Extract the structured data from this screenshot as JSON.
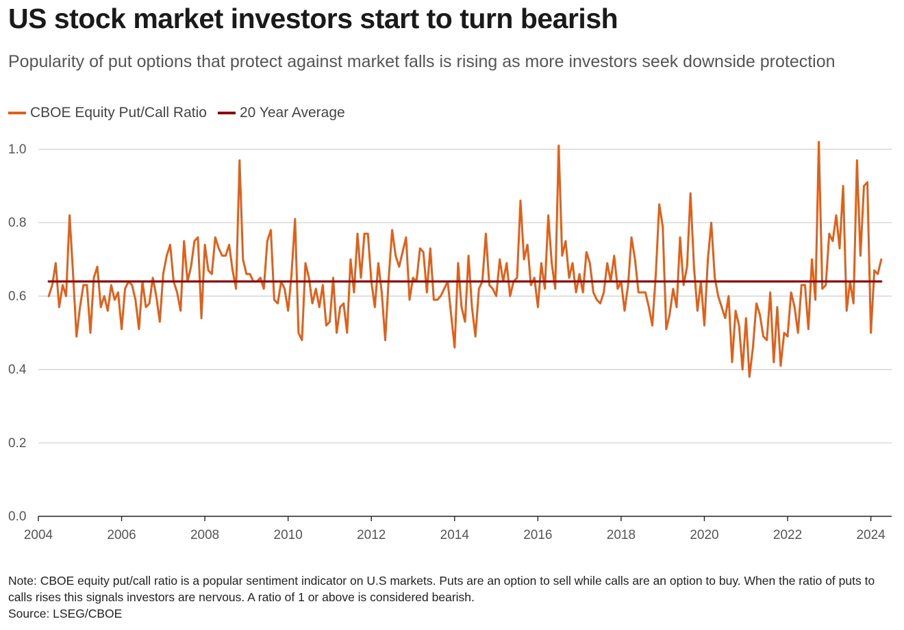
{
  "header": {
    "title": "US stock market investors start to turn bearish",
    "subtitle": "Popularity of put options that protect against market falls is rising as more investors seek downside protection"
  },
  "legend": [
    {
      "label": "CBOE Equity Put/Call Ratio",
      "color": "#e0601a"
    },
    {
      "label": "20 Year Average",
      "color": "#8b0d0d"
    }
  ],
  "footer": {
    "note": "Note: CBOE equity put/call ratio is a popular sentiment indicator on U.S markets. Puts are an option to sell while calls are an option to buy. When the ratio of puts to calls rises this signals investors are nervous. A ratio of 1 or above is considered bearish.",
    "source": "Source: LSEG/CBOE"
  },
  "chart_data": {
    "type": "line",
    "title": "US stock market investors start to turn bearish",
    "xlabel": "",
    "ylabel": "",
    "xlim": [
      "2004-01",
      "2024-07"
    ],
    "ylim": [
      0,
      1.0
    ],
    "x_ticks": [
      "2004",
      "2006",
      "2008",
      "2010",
      "2012",
      "2014",
      "2016",
      "2018",
      "2020",
      "2022",
      "2024"
    ],
    "y_ticks": [
      "0.0",
      "0.2",
      "0.4",
      "0.6",
      "0.8",
      "1.0"
    ],
    "grid": "horizontal",
    "legend_position": "top-left",
    "series": [
      {
        "name": "CBOE Equity Put/Call Ratio",
        "color": "#e0601a",
        "points": [
          [
            "2004-04",
            0.6
          ],
          [
            "2004-05",
            0.63
          ],
          [
            "2004-06",
            0.69
          ],
          [
            "2004-07",
            0.57
          ],
          [
            "2004-08",
            0.63
          ],
          [
            "2004-09",
            0.6
          ],
          [
            "2004-10",
            0.82
          ],
          [
            "2004-11",
            0.66
          ],
          [
            "2004-12",
            0.49
          ],
          [
            "2005-01",
            0.57
          ],
          [
            "2005-02",
            0.63
          ],
          [
            "2005-03",
            0.63
          ],
          [
            "2005-04",
            0.5
          ],
          [
            "2005-05",
            0.65
          ],
          [
            "2005-06",
            0.68
          ],
          [
            "2005-07",
            0.57
          ],
          [
            "2005-08",
            0.6
          ],
          [
            "2005-09",
            0.56
          ],
          [
            "2005-10",
            0.63
          ],
          [
            "2005-11",
            0.59
          ],
          [
            "2005-12",
            0.61
          ],
          [
            "2006-01",
            0.51
          ],
          [
            "2006-02",
            0.62
          ],
          [
            "2006-03",
            0.64
          ],
          [
            "2006-04",
            0.63
          ],
          [
            "2006-05",
            0.59
          ],
          [
            "2006-06",
            0.51
          ],
          [
            "2006-07",
            0.64
          ],
          [
            "2006-08",
            0.57
          ],
          [
            "2006-09",
            0.58
          ],
          [
            "2006-10",
            0.65
          ],
          [
            "2006-11",
            0.6
          ],
          [
            "2006-12",
            0.53
          ],
          [
            "2007-01",
            0.66
          ],
          [
            "2007-02",
            0.71
          ],
          [
            "2007-03",
            0.74
          ],
          [
            "2007-04",
            0.64
          ],
          [
            "2007-05",
            0.61
          ],
          [
            "2007-06",
            0.56
          ],
          [
            "2007-07",
            0.75
          ],
          [
            "2007-08",
            0.64
          ],
          [
            "2007-09",
            0.68
          ],
          [
            "2007-10",
            0.75
          ],
          [
            "2007-11",
            0.76
          ],
          [
            "2007-12",
            0.54
          ],
          [
            "2008-01",
            0.74
          ],
          [
            "2008-02",
            0.67
          ],
          [
            "2008-03",
            0.66
          ],
          [
            "2008-04",
            0.76
          ],
          [
            "2008-05",
            0.73
          ],
          [
            "2008-06",
            0.71
          ],
          [
            "2008-07",
            0.71
          ],
          [
            "2008-08",
            0.74
          ],
          [
            "2008-09",
            0.67
          ],
          [
            "2008-10",
            0.62
          ],
          [
            "2008-11",
            0.97
          ],
          [
            "2008-12",
            0.7
          ],
          [
            "2009-01",
            0.66
          ],
          [
            "2009-02",
            0.66
          ],
          [
            "2009-03",
            0.64
          ],
          [
            "2009-04",
            0.64
          ],
          [
            "2009-05",
            0.65
          ],
          [
            "2009-06",
            0.62
          ],
          [
            "2009-07",
            0.75
          ],
          [
            "2009-08",
            0.78
          ],
          [
            "2009-09",
            0.59
          ],
          [
            "2009-10",
            0.58
          ],
          [
            "2009-11",
            0.64
          ],
          [
            "2009-12",
            0.62
          ],
          [
            "2010-01",
            0.56
          ],
          [
            "2010-02",
            0.66
          ],
          [
            "2010-03",
            0.81
          ],
          [
            "2010-04",
            0.5
          ],
          [
            "2010-05",
            0.48
          ],
          [
            "2010-06",
            0.69
          ],
          [
            "2010-07",
            0.65
          ],
          [
            "2010-08",
            0.58
          ],
          [
            "2010-09",
            0.62
          ],
          [
            "2010-10",
            0.57
          ],
          [
            "2010-11",
            0.63
          ],
          [
            "2010-12",
            0.52
          ],
          [
            "2011-01",
            0.53
          ],
          [
            "2011-02",
            0.65
          ],
          [
            "2011-03",
            0.5
          ],
          [
            "2011-04",
            0.57
          ],
          [
            "2011-05",
            0.58
          ],
          [
            "2011-06",
            0.5
          ],
          [
            "2011-07",
            0.7
          ],
          [
            "2011-08",
            0.61
          ],
          [
            "2011-09",
            0.77
          ],
          [
            "2011-10",
            0.65
          ],
          [
            "2011-11",
            0.77
          ],
          [
            "2011-12",
            0.77
          ],
          [
            "2012-01",
            0.64
          ],
          [
            "2012-02",
            0.57
          ],
          [
            "2012-03",
            0.69
          ],
          [
            "2012-04",
            0.61
          ],
          [
            "2012-05",
            0.48
          ],
          [
            "2012-06",
            0.65
          ],
          [
            "2012-07",
            0.78
          ],
          [
            "2012-08",
            0.71
          ],
          [
            "2012-09",
            0.68
          ],
          [
            "2012-10",
            0.72
          ],
          [
            "2012-11",
            0.76
          ],
          [
            "2012-12",
            0.59
          ],
          [
            "2013-01",
            0.65
          ],
          [
            "2013-02",
            0.64
          ],
          [
            "2013-03",
            0.73
          ],
          [
            "2013-04",
            0.72
          ],
          [
            "2013-05",
            0.61
          ],
          [
            "2013-06",
            0.73
          ],
          [
            "2013-07",
            0.59
          ],
          [
            "2013-08",
            0.59
          ],
          [
            "2013-09",
            0.6
          ],
          [
            "2013-10",
            0.62
          ],
          [
            "2013-11",
            0.64
          ],
          [
            "2013-12",
            0.55
          ],
          [
            "2014-01",
            0.46
          ],
          [
            "2014-02",
            0.69
          ],
          [
            "2014-03",
            0.57
          ],
          [
            "2014-04",
            0.53
          ],
          [
            "2014-05",
            0.71
          ],
          [
            "2014-06",
            0.57
          ],
          [
            "2014-07",
            0.49
          ],
          [
            "2014-08",
            0.62
          ],
          [
            "2014-09",
            0.64
          ],
          [
            "2014-10",
            0.77
          ],
          [
            "2014-11",
            0.63
          ],
          [
            "2014-12",
            0.62
          ],
          [
            "2015-01",
            0.6
          ],
          [
            "2015-02",
            0.7
          ],
          [
            "2015-03",
            0.64
          ],
          [
            "2015-04",
            0.69
          ],
          [
            "2015-05",
            0.6
          ],
          [
            "2015-06",
            0.64
          ],
          [
            "2015-07",
            0.65
          ],
          [
            "2015-08",
            0.86
          ],
          [
            "2015-09",
            0.7
          ],
          [
            "2015-10",
            0.74
          ],
          [
            "2015-11",
            0.63
          ],
          [
            "2015-12",
            0.65
          ],
          [
            "2016-01",
            0.57
          ],
          [
            "2016-02",
            0.69
          ],
          [
            "2016-03",
            0.62
          ],
          [
            "2016-04",
            0.82
          ],
          [
            "2016-05",
            0.69
          ],
          [
            "2016-06",
            0.62
          ],
          [
            "2016-07",
            1.01
          ],
          [
            "2016-08",
            0.71
          ],
          [
            "2016-09",
            0.75
          ],
          [
            "2016-10",
            0.65
          ],
          [
            "2016-11",
            0.69
          ],
          [
            "2016-12",
            0.61
          ],
          [
            "2017-01",
            0.66
          ],
          [
            "2017-02",
            0.61
          ],
          [
            "2017-03",
            0.72
          ],
          [
            "2017-04",
            0.69
          ],
          [
            "2017-05",
            0.61
          ],
          [
            "2017-06",
            0.59
          ],
          [
            "2017-07",
            0.58
          ],
          [
            "2017-08",
            0.61
          ],
          [
            "2017-09",
            0.69
          ],
          [
            "2017-10",
            0.64
          ],
          [
            "2017-11",
            0.71
          ],
          [
            "2017-12",
            0.62
          ],
          [
            "2018-01",
            0.64
          ],
          [
            "2018-02",
            0.56
          ],
          [
            "2018-03",
            0.63
          ],
          [
            "2018-04",
            0.76
          ],
          [
            "2018-05",
            0.7
          ],
          [
            "2018-06",
            0.61
          ],
          [
            "2018-07",
            0.61
          ],
          [
            "2018-08",
            0.61
          ],
          [
            "2018-09",
            0.57
          ],
          [
            "2018-10",
            0.52
          ],
          [
            "2018-11",
            0.66
          ],
          [
            "2018-12",
            0.85
          ],
          [
            "2019-01",
            0.79
          ],
          [
            "2019-02",
            0.51
          ],
          [
            "2019-03",
            0.55
          ],
          [
            "2019-04",
            0.62
          ],
          [
            "2019-05",
            0.57
          ],
          [
            "2019-06",
            0.76
          ],
          [
            "2019-07",
            0.63
          ],
          [
            "2019-08",
            0.68
          ],
          [
            "2019-09",
            0.88
          ],
          [
            "2019-10",
            0.68
          ],
          [
            "2019-11",
            0.56
          ],
          [
            "2019-12",
            0.64
          ],
          [
            "2020-01",
            0.52
          ],
          [
            "2020-02",
            0.7
          ],
          [
            "2020-03",
            0.8
          ],
          [
            "2020-04",
            0.65
          ],
          [
            "2020-05",
            0.6
          ],
          [
            "2020-06",
            0.57
          ],
          [
            "2020-07",
            0.54
          ],
          [
            "2020-08",
            0.6
          ],
          [
            "2020-09",
            0.42
          ],
          [
            "2020-10",
            0.56
          ],
          [
            "2020-11",
            0.52
          ],
          [
            "2020-12",
            0.4
          ],
          [
            "2021-01",
            0.54
          ],
          [
            "2021-02",
            0.38
          ],
          [
            "2021-03",
            0.46
          ],
          [
            "2021-04",
            0.58
          ],
          [
            "2021-05",
            0.55
          ],
          [
            "2021-06",
            0.49
          ],
          [
            "2021-07",
            0.48
          ],
          [
            "2021-08",
            0.61
          ],
          [
            "2021-09",
            0.42
          ],
          [
            "2021-10",
            0.57
          ],
          [
            "2021-11",
            0.41
          ],
          [
            "2021-12",
            0.5
          ],
          [
            "2022-01",
            0.49
          ],
          [
            "2022-02",
            0.61
          ],
          [
            "2022-03",
            0.57
          ],
          [
            "2022-04",
            0.5
          ],
          [
            "2022-05",
            0.63
          ],
          [
            "2022-06",
            0.63
          ],
          [
            "2022-07",
            0.51
          ],
          [
            "2022-08",
            0.7
          ],
          [
            "2022-09",
            0.59
          ],
          [
            "2022-10",
            1.02
          ],
          [
            "2022-11",
            0.62
          ],
          [
            "2022-12",
            0.63
          ],
          [
            "2023-01",
            0.77
          ],
          [
            "2023-02",
            0.75
          ],
          [
            "2023-03",
            0.82
          ],
          [
            "2023-04",
            0.73
          ],
          [
            "2023-05",
            0.9
          ],
          [
            "2023-06",
            0.56
          ],
          [
            "2023-07",
            0.64
          ],
          [
            "2023-08",
            0.58
          ],
          [
            "2023-09",
            0.97
          ],
          [
            "2023-10",
            0.71
          ],
          [
            "2023-11",
            0.9
          ],
          [
            "2023-12",
            0.91
          ],
          [
            "2024-01",
            0.5
          ],
          [
            "2024-02",
            0.67
          ],
          [
            "2024-03",
            0.66
          ],
          [
            "2024-04",
            0.7
          ]
        ]
      },
      {
        "name": "20 Year Average",
        "color": "#8b0d0d",
        "points": [
          [
            "2004-04",
            0.64
          ],
          [
            "2024-04",
            0.64
          ]
        ]
      }
    ]
  }
}
